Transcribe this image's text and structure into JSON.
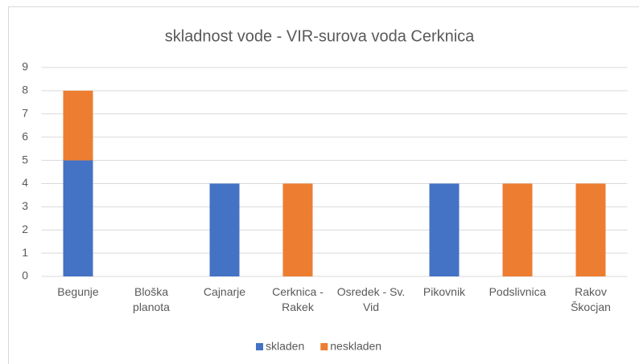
{
  "chart_data": {
    "type": "bar",
    "stacked": true,
    "title": "skladnost vode - VIR-surova voda Cerknica",
    "categories": [
      "Begunje",
      "Bloška planota",
      "Cajnarje",
      "Cerknica - Rakek",
      "Osredek - Sv. Vid",
      "Pikovnik",
      "Podslivnica",
      "Rakov Škocjan"
    ],
    "series": [
      {
        "name": "skladen",
        "color": "#4472c4",
        "values": [
          5,
          0,
          4,
          0,
          0,
          4,
          0,
          0
        ]
      },
      {
        "name": "neskladen",
        "color": "#ed7d31",
        "values": [
          3,
          0,
          0,
          4,
          0,
          0,
          4,
          4
        ]
      }
    ],
    "ylim": [
      0,
      9
    ],
    "yticks": [
      0,
      1,
      2,
      3,
      4,
      5,
      6,
      7,
      8,
      9
    ],
    "grid": true,
    "legend": "bottom"
  }
}
